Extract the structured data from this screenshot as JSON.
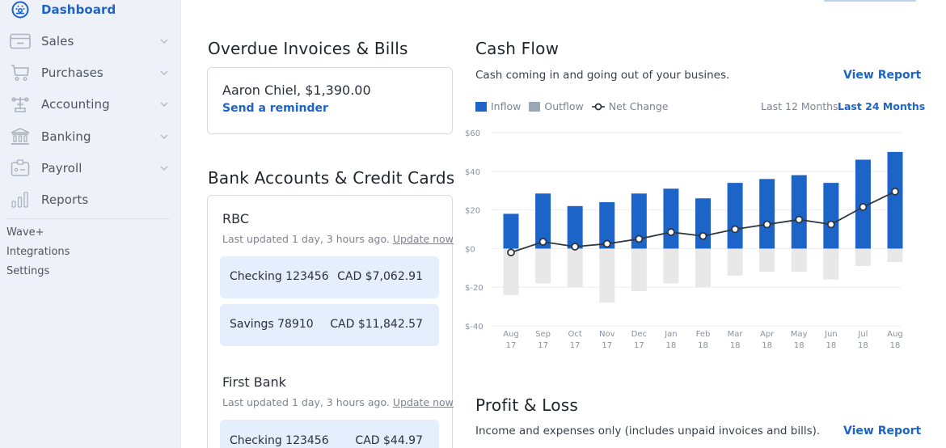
{
  "sidebar": {
    "items": [
      {
        "label": "Dashboard",
        "icon": "dashboard-icon",
        "active": true,
        "has_chevron": false
      },
      {
        "label": "Sales",
        "icon": "sales-card-icon",
        "active": false,
        "has_chevron": true
      },
      {
        "label": "Purchases",
        "icon": "cart-icon",
        "active": false,
        "has_chevron": true
      },
      {
        "label": "Accounting",
        "icon": "scale-icon",
        "active": false,
        "has_chevron": true
      },
      {
        "label": "Banking",
        "icon": "bank-icon",
        "active": false,
        "has_chevron": true
      },
      {
        "label": "Payroll",
        "icon": "id-badge-icon",
        "active": false,
        "has_chevron": true
      },
      {
        "label": "Reports",
        "icon": "bar-chart-icon",
        "active": false,
        "has_chevron": false
      }
    ],
    "links": [
      {
        "label": "Wave+"
      },
      {
        "label": "Integrations"
      },
      {
        "label": "Settings"
      }
    ]
  },
  "overdue": {
    "title": "Overdue Invoices & Bills",
    "items": [
      {
        "name": "Aaron Chiel, $1,390.00",
        "action": "Send a reminder"
      }
    ]
  },
  "bank_accounts": {
    "title": "Bank Accounts & Credit Cards",
    "banks": [
      {
        "name": "RBC",
        "updated": "Last updated 1 day, 3 hours ago.",
        "update_link": "Update now",
        "accounts": [
          {
            "name": "Checking 123456",
            "amount": "CAD $7,062.91"
          },
          {
            "name": "Savings 78910",
            "amount": "CAD $11,842.57"
          }
        ]
      },
      {
        "name": "First Bank",
        "updated": "Last updated 1 day, 3 hours ago.",
        "update_link": "Update now",
        "accounts": [
          {
            "name": "Checking 123456",
            "amount": "CAD $44.97"
          }
        ]
      }
    ]
  },
  "cash_flow": {
    "title": "Cash Flow",
    "description": "Cash coming in and going out of your busines.",
    "view_report": "View Report",
    "legend": {
      "inflow": "Inflow",
      "outflow": "Outflow",
      "net_change": "Net Change"
    },
    "ranges": {
      "last12": "Last 12 Months",
      "last24": "Last 24 Months",
      "active": "last24"
    },
    "colors": {
      "inflow": "#1c64c8",
      "outflow": "#e8e8e8",
      "outflow_legend": "#9aa7b6",
      "net_line": "#2f3640",
      "grid": "#eeeeee"
    }
  },
  "profit_loss": {
    "title": "Profit & Loss",
    "description": "Income and expenses only (includes unpaid invoices and bills).",
    "view_report": "View Report"
  },
  "chart_data": {
    "type": "bar",
    "title": "Cash Flow",
    "xlabel": "",
    "ylabel": "",
    "ylim": [
      -40,
      60
    ],
    "yticks": [
      "$60",
      "$40",
      "$20",
      "$0",
      "$-20",
      "$-40"
    ],
    "ytick_values": [
      60,
      40,
      20,
      0,
      -20,
      -40
    ],
    "grid": true,
    "legend_position": "top-left",
    "categories": [
      "Aug 17",
      "Sep 17",
      "Oct 17",
      "Nov 17",
      "Dec 17",
      "Jan 18",
      "Feb 18",
      "Mar 18",
      "Apr 18",
      "May 18",
      "Jun 18",
      "Jul 18",
      "Aug 18"
    ],
    "category_lines": [
      [
        "Aug",
        "17"
      ],
      [
        "Sep",
        "17"
      ],
      [
        "Oct",
        "17"
      ],
      [
        "Nov",
        "17"
      ],
      [
        "Dec",
        "17"
      ],
      [
        "Jan",
        "18"
      ],
      [
        "Feb",
        "18"
      ],
      [
        "Mar",
        "18"
      ],
      [
        "Apr",
        "18"
      ],
      [
        "May",
        "18"
      ],
      [
        "Jun",
        "18"
      ],
      [
        "Jul",
        "18"
      ],
      [
        "Aug",
        "18"
      ]
    ],
    "series": [
      {
        "name": "Inflow",
        "type": "bar",
        "values": [
          18,
          28.5,
          22,
          24,
          28.5,
          31,
          26,
          34,
          36,
          38,
          34,
          46,
          50
        ]
      },
      {
        "name": "Outflow",
        "type": "bar",
        "values": [
          -24,
          -18,
          -20,
          -28,
          -22,
          -18,
          -20,
          -14,
          -12,
          -12,
          -16,
          -9,
          -7
        ]
      },
      {
        "name": "Net Change",
        "type": "line",
        "values": [
          -2,
          3.5,
          1,
          2.5,
          5,
          8.5,
          6.5,
          10,
          12.5,
          15,
          12.5,
          21.5,
          29.5
        ]
      }
    ]
  }
}
